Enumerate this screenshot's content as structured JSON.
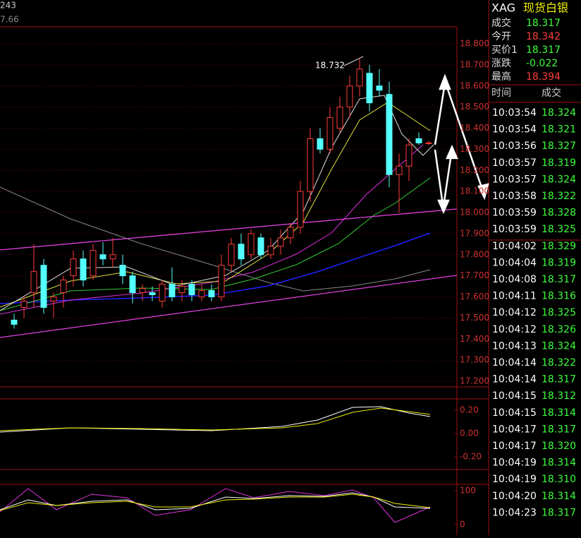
{
  "header": {
    "code_fragment": "243",
    "value_fragment": "7.66"
  },
  "chart_data": {
    "type": "candlestick",
    "ylim": [
      17.2,
      18.8
    ],
    "yticks": [
      {
        "value": 18.8,
        "label": "18.800"
      },
      {
        "value": 18.7,
        "label": "18.700"
      },
      {
        "value": 18.6,
        "label": "18.600"
      },
      {
        "value": 18.5,
        "label": "18.500"
      },
      {
        "value": 18.4,
        "label": "18.400"
      },
      {
        "value": 18.3,
        "label": "18.300"
      },
      {
        "value": 18.2,
        "label": "18.200"
      },
      {
        "value": 18.1,
        "label": "18.100"
      },
      {
        "value": 18.0,
        "label": "18.000"
      },
      {
        "value": 17.9,
        "label": "17.900"
      },
      {
        "value": 17.8,
        "label": "17.800"
      },
      {
        "value": 17.7,
        "label": "17.700"
      },
      {
        "value": 17.6,
        "label": "17.600"
      },
      {
        "value": 17.5,
        "label": "17.500"
      },
      {
        "value": 17.4,
        "label": "17.400"
      },
      {
        "value": 17.3,
        "label": "17.300"
      },
      {
        "value": 17.2,
        "label": "17.200"
      }
    ],
    "grid": true,
    "up_color": "#ff3b3b",
    "down_color": "#54ffff",
    "open": [
      17.49,
      17.55,
      17.62,
      17.75,
      17.58,
      17.62,
      17.7,
      17.78,
      17.7,
      17.8,
      17.78,
      17.75,
      17.7,
      17.62,
      17.62,
      17.58,
      17.66,
      17.62,
      17.66,
      17.6,
      17.63,
      17.6,
      17.75,
      17.85,
      17.8,
      17.88,
      17.8,
      17.84,
      17.88,
      17.93,
      18.1,
      18.35,
      18.3,
      18.4,
      18.5,
      18.6,
      18.66,
      18.6,
      18.56,
      18.18,
      18.22,
      18.35,
      18.33
    ],
    "high": [
      17.52,
      17.6,
      17.85,
      17.78,
      17.62,
      17.7,
      17.82,
      17.82,
      17.85,
      17.86,
      17.88,
      17.8,
      17.72,
      17.66,
      17.65,
      17.68,
      17.74,
      17.68,
      17.68,
      17.66,
      17.66,
      17.8,
      17.88,
      17.9,
      17.92,
      17.9,
      17.88,
      17.92,
      17.95,
      18.15,
      18.4,
      18.4,
      18.5,
      18.55,
      18.65,
      18.73,
      18.7,
      18.68,
      18.62,
      18.28,
      18.35,
      18.38,
      18.34
    ],
    "low": [
      17.45,
      17.5,
      17.55,
      17.52,
      17.5,
      17.55,
      17.65,
      17.65,
      17.68,
      17.75,
      17.74,
      17.66,
      17.57,
      17.58,
      17.58,
      17.55,
      17.58,
      17.58,
      17.58,
      17.58,
      17.58,
      17.58,
      17.72,
      17.75,
      17.78,
      17.78,
      17.78,
      17.8,
      17.85,
      17.9,
      18.05,
      18.28,
      18.28,
      18.38,
      18.45,
      18.55,
      18.48,
      18.55,
      18.12,
      18.0,
      18.15,
      18.32,
      18.32
    ],
    "close": [
      17.47,
      17.58,
      17.72,
      17.55,
      17.6,
      17.68,
      17.78,
      17.68,
      17.82,
      17.78,
      17.8,
      17.7,
      17.62,
      17.64,
      17.61,
      17.66,
      17.6,
      17.65,
      17.61,
      17.63,
      17.6,
      17.75,
      17.85,
      17.78,
      17.9,
      17.8,
      17.84,
      17.88,
      17.93,
      18.1,
      18.35,
      18.3,
      18.45,
      18.5,
      18.6,
      18.68,
      18.52,
      18.58,
      18.18,
      18.22,
      18.32,
      18.33,
      18.33
    ],
    "peak_label": 18.732,
    "macd_ylim": [
      -0.3,
      0.3
    ],
    "macd_yticks": [
      {
        "value": 0.2,
        "label": "0.20"
      },
      {
        "value": 0,
        "label": "0.00"
      },
      {
        "value": -0.2,
        "label": "-0.20"
      }
    ],
    "kdj_ylim": [
      -20,
      115
    ],
    "kdj_yticks": [
      100,
      0
    ]
  },
  "quote": {
    "symbol": "XAG",
    "name": "现货白银",
    "rows": [
      {
        "label": "成交",
        "value": "18.317",
        "color": "#3cff3c"
      },
      {
        "label": "今开",
        "value": "18.342",
        "color": "#ff4040"
      },
      {
        "label": "买价1",
        "value": "18.317",
        "color": "#3cff3c"
      },
      {
        "label": "涨跌",
        "value": "-0.022",
        "color": "#3cff3c"
      },
      {
        "label": "最高",
        "value": "18.394",
        "color": "#ff4040"
      }
    ]
  },
  "trades": {
    "headers": [
      "时间",
      "成交"
    ],
    "rows": [
      [
        "10:03:54",
        "18.324"
      ],
      [
        "10:03:54",
        "18.321"
      ],
      [
        "10:03:56",
        "18.327"
      ],
      [
        "10:03:57",
        "18.319"
      ],
      [
        "10:03:57",
        "18.324"
      ],
      [
        "10:03:58",
        "18.322"
      ],
      [
        "10:03:59",
        "18.328"
      ],
      [
        "10:03:59",
        "18.325"
      ],
      [
        "10:04:02",
        "18.329"
      ],
      [
        "10:04:04",
        "18.319"
      ],
      [
        "10:04:08",
        "18.317"
      ],
      [
        "10:04:11",
        "18.316"
      ],
      [
        "10:04:12",
        "18.325"
      ],
      [
        "10:04:12",
        "18.326"
      ],
      [
        "10:04:13",
        "18.324"
      ],
      [
        "10:04:14",
        "18.322"
      ],
      [
        "10:04:14",
        "18.317"
      ],
      [
        "10:04:15",
        "18.312"
      ],
      [
        "10:04:15",
        "18.314"
      ],
      [
        "10:04:17",
        "18.317"
      ],
      [
        "10:04:17",
        "18.320"
      ],
      [
        "10:04:19",
        "18.314"
      ],
      [
        "10:04:19",
        "18.310"
      ],
      [
        "10:04:20",
        "18.314"
      ],
      [
        "10:04:23",
        "18.317"
      ]
    ]
  }
}
